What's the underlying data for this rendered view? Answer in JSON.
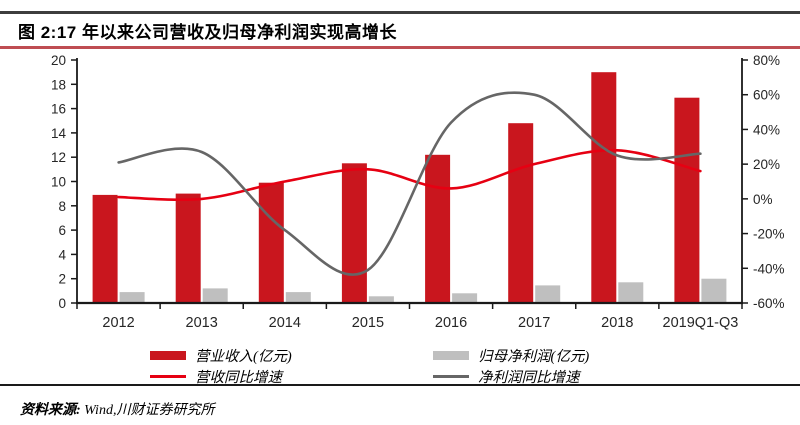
{
  "header": {
    "title": "图 2:17 年以来公司营收及归母净利润实现高增长"
  },
  "chart_data": {
    "type": "bar+line combo",
    "categories": [
      "2012",
      "2013",
      "2014",
      "2015",
      "2016",
      "2017",
      "2018",
      "2019Q1-Q3"
    ],
    "series": [
      {
        "name": "营业收入(亿元)",
        "type": "bar",
        "axis": "left",
        "values": [
          8.9,
          9.0,
          9.9,
          11.5,
          12.2,
          14.8,
          19.0,
          16.9
        ]
      },
      {
        "name": "归母净利润(亿元)",
        "type": "bar",
        "axis": "left",
        "values": [
          0.9,
          1.2,
          0.9,
          0.55,
          0.8,
          1.45,
          1.7,
          2.0
        ]
      },
      {
        "name": "营收同比增速",
        "type": "line",
        "axis": "right",
        "values_pct": [
          1,
          0,
          10,
          17,
          6,
          20,
          28,
          16
        ]
      },
      {
        "name": "净利润同比增速",
        "type": "line",
        "axis": "right",
        "values_pct": [
          21,
          27,
          -18,
          -41,
          44,
          60,
          25,
          26
        ]
      }
    ],
    "left_axis": {
      "min": 0,
      "max": 20,
      "step": 2,
      "ticks": [
        "0",
        "2",
        "4",
        "6",
        "8",
        "10",
        "12",
        "14",
        "16",
        "18",
        "20"
      ]
    },
    "right_axis": {
      "min": -60,
      "max": 80,
      "step": 20,
      "ticks": [
        "-60%",
        "-40%",
        "-20%",
        "0%",
        "20%",
        "40%",
        "60%",
        "80%"
      ]
    },
    "grid": false,
    "legend_position": "bottom",
    "smooth_lines": true
  },
  "footer": {
    "label": "资料来源:",
    "source": "Wind,川财证券研究所"
  },
  "colors": {
    "revenue_bar": "#c9161e",
    "profit_bar": "#bfbfbf",
    "revenue_line": "#e60012",
    "profit_line": "#666666",
    "axis": "#1a1a1a",
    "top_rule": "#3d3d3d",
    "title_rule": "#bf4d52"
  }
}
